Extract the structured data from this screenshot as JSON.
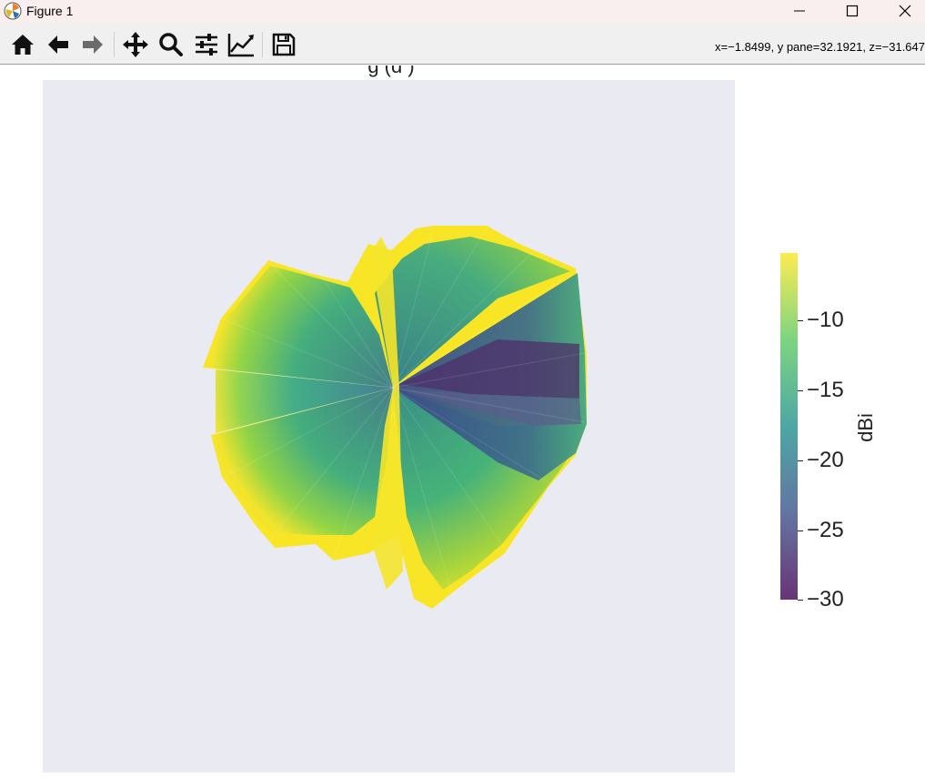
{
  "window": {
    "title": "Figure 1",
    "app_icon": "matplotlib-icon",
    "controls": [
      "minimize-icon",
      "maximize-icon",
      "close-icon"
    ]
  },
  "toolbar": {
    "buttons": [
      {
        "name": "home",
        "icon": "home-icon"
      },
      {
        "name": "back",
        "icon": "back-arrow-icon"
      },
      {
        "name": "forward",
        "icon": "forward-arrow-icon"
      },
      {
        "name": "pan",
        "icon": "move-icon"
      },
      {
        "name": "zoom",
        "icon": "magnifier-icon"
      },
      {
        "name": "configure-subplots",
        "icon": "sliders-icon"
      },
      {
        "name": "edit-axes",
        "icon": "line-chart-icon"
      },
      {
        "name": "save",
        "icon": "floppy-disk-icon"
      }
    ],
    "coordinates": "x=−1.8499, y pane=32.1921, z=−31.647"
  },
  "figure": {
    "title": "g (d )",
    "axes_background": "#eaeaf2",
    "colorbar": {
      "label": "dBi",
      "colormap": "viridis",
      "range": [
        -30,
        -6
      ],
      "ticks": [
        "−10",
        "−15",
        "−20",
        "−25",
        "−30"
      ]
    }
  }
}
